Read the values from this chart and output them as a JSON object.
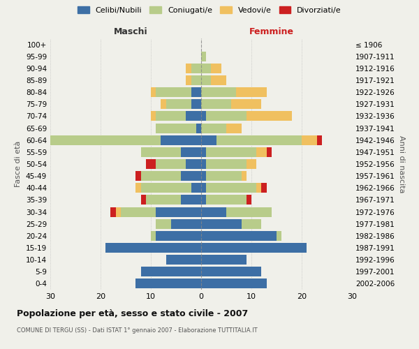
{
  "age_groups": [
    "0-4",
    "5-9",
    "10-14",
    "15-19",
    "20-24",
    "25-29",
    "30-34",
    "35-39",
    "40-44",
    "45-49",
    "50-54",
    "55-59",
    "60-64",
    "65-69",
    "70-74",
    "75-79",
    "80-84",
    "85-89",
    "90-94",
    "95-99",
    "100+"
  ],
  "birth_years": [
    "2002-2006",
    "1997-2001",
    "1992-1996",
    "1987-1991",
    "1982-1986",
    "1977-1981",
    "1972-1976",
    "1967-1971",
    "1962-1966",
    "1957-1961",
    "1952-1956",
    "1947-1951",
    "1942-1946",
    "1937-1941",
    "1932-1936",
    "1927-1931",
    "1922-1926",
    "1917-1921",
    "1912-1916",
    "1907-1911",
    "≤ 1906"
  ],
  "maschi": {
    "celibe": [
      13,
      12,
      7,
      19,
      9,
      6,
      9,
      4,
      2,
      4,
      3,
      4,
      8,
      1,
      3,
      2,
      2,
      0,
      0,
      0,
      0
    ],
    "coniugato": [
      0,
      0,
      0,
      0,
      1,
      3,
      7,
      7,
      10,
      8,
      6,
      8,
      22,
      8,
      6,
      5,
      7,
      2,
      2,
      0,
      0
    ],
    "vedovo": [
      0,
      0,
      0,
      0,
      0,
      0,
      1,
      0,
      1,
      0,
      0,
      0,
      1,
      0,
      1,
      1,
      1,
      1,
      1,
      0,
      0
    ],
    "divorziato": [
      0,
      0,
      0,
      0,
      0,
      0,
      1,
      1,
      0,
      1,
      2,
      0,
      1,
      0,
      0,
      0,
      0,
      0,
      0,
      0,
      0
    ]
  },
  "femmine": {
    "nubile": [
      13,
      12,
      9,
      21,
      15,
      8,
      5,
      1,
      1,
      1,
      1,
      1,
      3,
      0,
      1,
      0,
      0,
      0,
      0,
      0,
      0
    ],
    "coniugata": [
      0,
      0,
      0,
      0,
      1,
      4,
      9,
      8,
      10,
      7,
      8,
      10,
      17,
      5,
      8,
      6,
      7,
      2,
      2,
      1,
      0
    ],
    "vedova": [
      0,
      0,
      0,
      0,
      0,
      0,
      0,
      0,
      1,
      1,
      2,
      2,
      3,
      3,
      9,
      6,
      6,
      3,
      2,
      0,
      0
    ],
    "divorziata": [
      0,
      0,
      0,
      0,
      0,
      0,
      0,
      1,
      1,
      0,
      0,
      1,
      1,
      0,
      0,
      0,
      0,
      0,
      0,
      0,
      0
    ]
  },
  "colors": {
    "celibe": "#3d6fa5",
    "coniugato": "#b8cc8a",
    "vedovo": "#f0c060",
    "divorziato": "#cc2020"
  },
  "xlim": 30,
  "title": "Popolazione per età, sesso e stato civile - 2007",
  "subtitle": "COMUNE DI TERGU (SS) - Dati ISTAT 1° gennaio 2007 - Elaborazione TUTTITALIA.IT",
  "xlabel_left": "Maschi",
  "xlabel_right": "Femmine",
  "ylabel": "Fasce di età",
  "ylabel_right": "Anni di nascita",
  "legend_labels": [
    "Celibi/Nubili",
    "Coniugati/e",
    "Vedovi/e",
    "Divorziati/e"
  ],
  "background_color": "#f0f0ea"
}
